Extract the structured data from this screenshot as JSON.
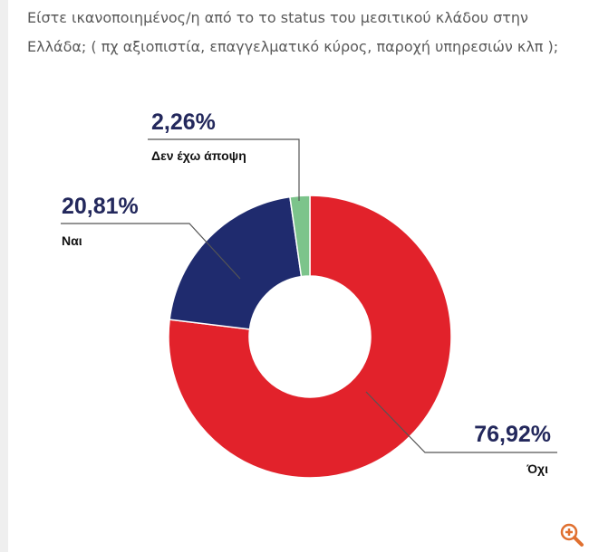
{
  "question": "Είστε ικανοποιημένος/η από το το status του μεσιτικού κλάδου στην Ελλάδα; ( πχ αξιοπιστία, επαγγελματικό κύρος, παροχή υπηρεσιών κλπ );",
  "chart_data": {
    "type": "pie",
    "style": "donut",
    "title": "",
    "categories": [
      "Όχι",
      "Ναι",
      "Δεν έχω άποψη"
    ],
    "values": [
      76.92,
      20.81,
      2.26
    ],
    "value_labels": [
      "76,92%",
      "20,81%",
      "2,26%"
    ],
    "colors": [
      "#e2222b",
      "#1f2b6e",
      "#7cc48b"
    ],
    "start_angle_deg": 0,
    "direction": "clockwise"
  },
  "colors": {
    "label_value": "#23285c",
    "label_category": "#111111",
    "zoom_icon": "#e07030"
  },
  "icons": {
    "zoom": "zoom-in-icon"
  }
}
